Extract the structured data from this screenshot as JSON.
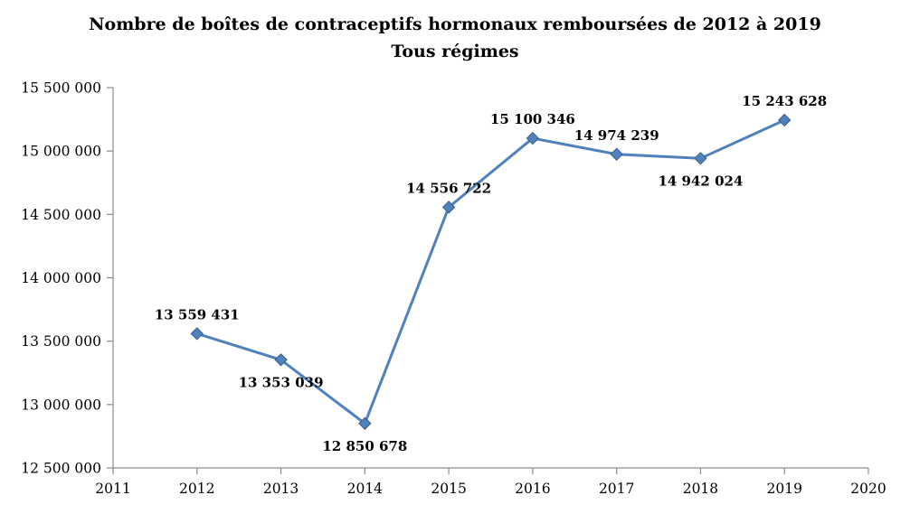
{
  "chart_data": {
    "type": "line",
    "title": "Nombre de boîtes de contraceptifs hormonaux remboursées de 2012 à 2019",
    "subtitle": "Tous régimes",
    "xlabel": "",
    "ylabel": "",
    "xlim": [
      2011,
      2020
    ],
    "ylim": [
      12500000,
      15500000
    ],
    "grid": false,
    "legend": "none",
    "line_color": "#4F81BD",
    "marker": "diamond",
    "marker_edge_color": "#385D8A",
    "axis_color": "#8C8C8C",
    "points": [
      {
        "x": 2012,
        "value": 13559431,
        "label": "13 559 431",
        "label_position": "above"
      },
      {
        "x": 2013,
        "value": 13353039,
        "label": "13 353 039",
        "label_position": "below"
      },
      {
        "x": 2014,
        "value": 12850678,
        "label": "12 850 678",
        "label_position": "below"
      },
      {
        "x": 2015,
        "value": 14556722,
        "label": "14 556 722",
        "label_position": "above"
      },
      {
        "x": 2016,
        "value": 15100346,
        "label": "15 100 346",
        "label_position": "above"
      },
      {
        "x": 2017,
        "value": 14974239,
        "label": "14 974 239",
        "label_position": "above"
      },
      {
        "x": 2018,
        "value": 14942024,
        "label": "14 942 024",
        "label_position": "below"
      },
      {
        "x": 2019,
        "value": 15243628,
        "label": "15 243 628",
        "label_position": "above"
      }
    ],
    "x_ticks": [
      {
        "value": 2011,
        "label": "2011"
      },
      {
        "value": 2012,
        "label": "2012"
      },
      {
        "value": 2013,
        "label": "2013"
      },
      {
        "value": 2014,
        "label": "2014"
      },
      {
        "value": 2015,
        "label": "2015"
      },
      {
        "value": 2016,
        "label": "2016"
      },
      {
        "value": 2017,
        "label": "2017"
      },
      {
        "value": 2018,
        "label": "2018"
      },
      {
        "value": 2019,
        "label": "2019"
      },
      {
        "value": 2020,
        "label": "2020"
      }
    ],
    "y_ticks": [
      {
        "value": 12500000,
        "label": "12 500 000"
      },
      {
        "value": 13000000,
        "label": "13 000 000"
      },
      {
        "value": 13500000,
        "label": "13 500 000"
      },
      {
        "value": 14000000,
        "label": "14 000 000"
      },
      {
        "value": 14500000,
        "label": "14 500 000"
      },
      {
        "value": 15000000,
        "label": "15 000 000"
      },
      {
        "value": 15500000,
        "label": "15 500 000"
      }
    ]
  }
}
